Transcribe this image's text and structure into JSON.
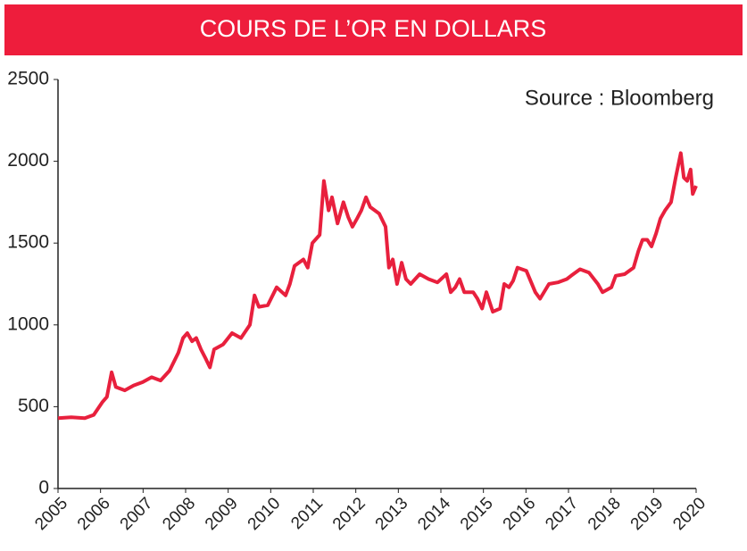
{
  "chart_data": {
    "type": "line",
    "title": "COURS DE L’OR EN DOLLARS",
    "annotation": "Source : Bloomberg",
    "x": [
      2005.0,
      2005.31,
      2005.63,
      2005.84,
      2006.05,
      2006.15,
      2006.26,
      2006.36,
      2006.57,
      2006.78,
      2006.99,
      2007.2,
      2007.41,
      2007.62,
      2007.83,
      2007.94,
      2008.04,
      2008.15,
      2008.25,
      2008.36,
      2008.46,
      2008.57,
      2008.67,
      2008.88,
      2009.09,
      2009.3,
      2009.51,
      2009.62,
      2009.72,
      2009.93,
      2010.14,
      2010.35,
      2010.45,
      2010.56,
      2010.77,
      2010.87,
      2010.98,
      2011.15,
      2011.25,
      2011.36,
      2011.44,
      2011.57,
      2011.71,
      2011.82,
      2011.92,
      2012.03,
      2012.13,
      2012.24,
      2012.34,
      2012.55,
      2012.7,
      2012.78,
      2012.87,
      2012.97,
      2013.08,
      2013.18,
      2013.29,
      2013.5,
      2013.71,
      2013.92,
      2014.13,
      2014.23,
      2014.34,
      2014.44,
      2014.55,
      2014.76,
      2014.86,
      2014.97,
      2015.07,
      2015.22,
      2015.39,
      2015.49,
      2015.6,
      2015.7,
      2015.8,
      2016.01,
      2016.22,
      2016.33,
      2016.54,
      2016.75,
      2016.96,
      2017.06,
      2017.27,
      2017.48,
      2017.69,
      2017.8,
      2018.01,
      2018.11,
      2018.32,
      2018.53,
      2018.64,
      2018.74,
      2018.85,
      2018.95,
      2019.06,
      2019.16,
      2019.27,
      2019.41,
      2019.52,
      2019.64,
      2019.71,
      2019.79,
      2019.87,
      2019.92,
      2020.0
    ],
    "series": [
      {
        "color": "#e8203d",
        "values": [
          430,
          435,
          430,
          450,
          530,
          560,
          710,
          620,
          600,
          630,
          650,
          680,
          660,
          720,
          830,
          920,
          950,
          900,
          920,
          850,
          800,
          740,
          850,
          880,
          950,
          920,
          1000,
          1180,
          1110,
          1120,
          1230,
          1180,
          1250,
          1360,
          1400,
          1350,
          1500,
          1550,
          1880,
          1700,
          1780,
          1620,
          1750,
          1660,
          1600,
          1650,
          1700,
          1780,
          1720,
          1680,
          1600,
          1350,
          1400,
          1250,
          1380,
          1280,
          1250,
          1310,
          1280,
          1260,
          1310,
          1200,
          1230,
          1280,
          1200,
          1200,
          1160,
          1100,
          1200,
          1080,
          1100,
          1250,
          1230,
          1270,
          1350,
          1330,
          1200,
          1160,
          1250,
          1260,
          1280,
          1300,
          1340,
          1320,
          1250,
          1200,
          1230,
          1300,
          1310,
          1350,
          1450,
          1520,
          1520,
          1480,
          1560,
          1650,
          1700,
          1750,
          1900,
          2050,
          1900,
          1880,
          1950,
          1800,
          1850
        ]
      }
    ],
    "xlim": [
      2005,
      2020
    ],
    "xticks": [
      2005,
      2006,
      2007,
      2008,
      2009,
      2010,
      2011,
      2012,
      2013,
      2014,
      2015,
      2016,
      2017,
      2018,
      2019,
      2020
    ],
    "ylim": [
      0,
      2500
    ],
    "yticks": [
      0,
      500,
      1000,
      1500,
      2000,
      2500
    ]
  }
}
